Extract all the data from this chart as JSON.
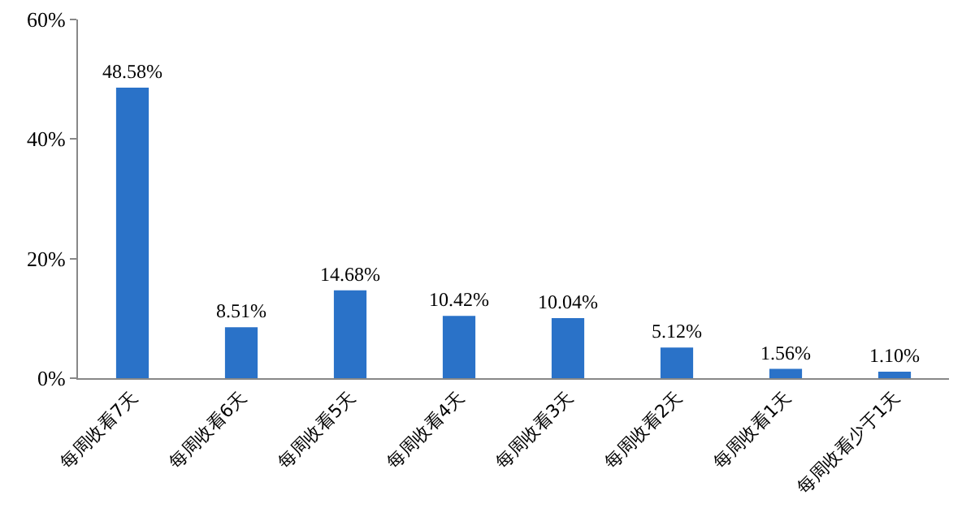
{
  "chart_data": {
    "type": "bar",
    "categories": [
      "每周收看7天",
      "每周收看6天",
      "每周收看5天",
      "每周收看4天",
      "每周收看3天",
      "每周收看2天",
      "每周收看1天",
      "每周收看少于1天"
    ],
    "values": [
      48.58,
      8.51,
      14.68,
      10.42,
      10.04,
      5.12,
      1.56,
      1.1
    ],
    "value_labels": [
      "48.58%",
      "8.51%",
      "14.68%",
      "10.42%",
      "10.04%",
      "5.12%",
      "1.56%",
      "1.10%"
    ],
    "color": "#2a72c8",
    "ylim": [
      0,
      60
    ],
    "yticks": [
      {
        "value": 0,
        "label": "0%"
      },
      {
        "value": 20,
        "label": "20%"
      },
      {
        "value": 40,
        "label": "40%"
      },
      {
        "value": 60,
        "label": "60%"
      }
    ],
    "grid": false
  }
}
